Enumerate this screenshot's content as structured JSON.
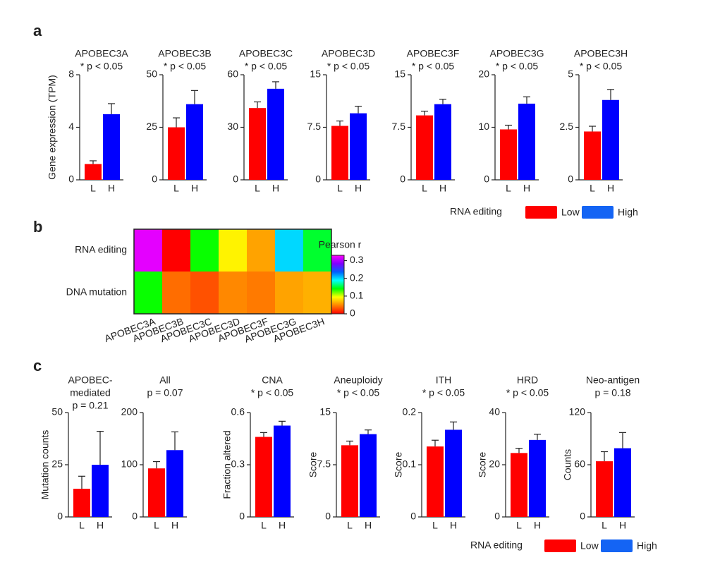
{
  "panels": [
    "a",
    "b",
    "c"
  ],
  "legends": [
    {
      "title": "RNA editing",
      "entries": [
        {
          "name": "Low",
          "color": "#ff0000"
        },
        {
          "name": "High",
          "color": "#1464f4"
        }
      ]
    },
    {
      "title": "RNA editing",
      "entries": [
        {
          "name": "Low",
          "color": "#ff0000"
        },
        {
          "name": "High",
          "color": "#1464f4"
        }
      ]
    }
  ],
  "chart_data": [
    {
      "type": "bar",
      "title": [
        "APOBEC3A",
        "* p < 0.05"
      ],
      "ylabel": "Gene expression (TPM)",
      "categories": [
        "L",
        "H"
      ],
      "values": [
        1.2,
        5.0
      ],
      "errors": [
        0.25,
        0.8
      ],
      "colors": [
        "#ff0000",
        "#0000ff"
      ],
      "ylim": [
        0,
        8
      ],
      "yticks": [
        0,
        4,
        8
      ]
    },
    {
      "type": "bar",
      "title": [
        "APOBEC3B",
        "* p < 0.05"
      ],
      "categories": [
        "L",
        "H"
      ],
      "values": [
        25,
        36
      ],
      "errors": [
        4.5,
        6.5
      ],
      "colors": [
        "#ff0000",
        "#0000ff"
      ],
      "ylim": [
        0,
        50
      ],
      "yticks": [
        0,
        25,
        50
      ]
    },
    {
      "type": "bar",
      "title": [
        "APOBEC3C",
        "* p < 0.05"
      ],
      "categories": [
        "L",
        "H"
      ],
      "values": [
        41,
        52
      ],
      "errors": [
        3.5,
        4
      ],
      "colors": [
        "#ff0000",
        "#0000ff"
      ],
      "ylim": [
        0,
        60
      ],
      "yticks": [
        0,
        30,
        60
      ]
    },
    {
      "type": "bar",
      "title": [
        "APOBEC3D",
        "* p < 0.05"
      ],
      "categories": [
        "L",
        "H"
      ],
      "values": [
        7.7,
        9.5
      ],
      "errors": [
        0.7,
        1.0
      ],
      "colors": [
        "#ff0000",
        "#0000ff"
      ],
      "ylim": [
        0,
        15
      ],
      "yticks": [
        0,
        7.5,
        15
      ]
    },
    {
      "type": "bar",
      "title": [
        "APOBEC3F",
        "* p < 0.05"
      ],
      "categories": [
        "L",
        "H"
      ],
      "values": [
        9.2,
        10.8
      ],
      "errors": [
        0.6,
        0.7
      ],
      "colors": [
        "#ff0000",
        "#0000ff"
      ],
      "ylim": [
        0,
        15
      ],
      "yticks": [
        0,
        7.5,
        15
      ]
    },
    {
      "type": "bar",
      "title": [
        "APOBEC3G",
        "* p < 0.05"
      ],
      "categories": [
        "L",
        "H"
      ],
      "values": [
        9.6,
        14.5
      ],
      "errors": [
        0.8,
        1.3
      ],
      "colors": [
        "#ff0000",
        "#0000ff"
      ],
      "ylim": [
        0,
        20
      ],
      "yticks": [
        0,
        10,
        20
      ]
    },
    {
      "type": "bar",
      "title": [
        "APOBEC3H",
        "* p < 0.05"
      ],
      "categories": [
        "L",
        "H"
      ],
      "values": [
        2.3,
        3.8
      ],
      "errors": [
        0.25,
        0.5
      ],
      "colors": [
        "#ff0000",
        "#0000ff"
      ],
      "ylim": [
        0,
        5
      ],
      "yticks": [
        0,
        2.5,
        5
      ]
    },
    {
      "type": "heatmap",
      "x": [
        "APOBEC3A",
        "APOBEC3B",
        "APOBEC3C",
        "APOBEC3D",
        "APOBEC3F",
        "APOBEC3G",
        "APOBEC3H"
      ],
      "y": [
        "RNA editing",
        "DNA mutation"
      ],
      "values": [
        [
          0.32,
          0.0,
          0.14,
          0.09,
          0.06,
          0.2,
          0.15
        ],
        [
          0.14,
          0.04,
          0.03,
          0.05,
          0.045,
          0.06,
          0.065
        ]
      ],
      "colorbar_title": "Pearson r",
      "zlim": [
        0,
        0.33
      ],
      "zticks": [
        0,
        0.1,
        0.2,
        0.3
      ],
      "colormap": [
        "#ff0000",
        "#ff8000",
        "#ffff00",
        "#00ff00",
        "#00ffff",
        "#0060ff",
        "#8000ff",
        "#ff00ff"
      ]
    },
    {
      "type": "bar",
      "title": [
        "APOBEC-",
        "mediated",
        "p = 0.21"
      ],
      "ylabel": "Mutation counts",
      "categories": [
        "L",
        "H"
      ],
      "values": [
        13.5,
        25
      ],
      "errors": [
        6,
        16
      ],
      "colors": [
        "#ff0000",
        "#0000ff"
      ],
      "ylim": [
        0,
        50
      ],
      "yticks": [
        0,
        25,
        50
      ]
    },
    {
      "type": "bar",
      "title": [
        "All",
        "p = 0.07"
      ],
      "categories": [
        "L",
        "H"
      ],
      "values": [
        93,
        128
      ],
      "errors": [
        13,
        35
      ],
      "colors": [
        "#ff0000",
        "#0000ff"
      ],
      "ylim": [
        0,
        200
      ],
      "yticks": [
        0,
        100,
        200
      ]
    },
    {
      "type": "bar",
      "title": [
        "CNA",
        "* p < 0.05"
      ],
      "ylabel": "Fraction altered",
      "categories": [
        "L",
        "H"
      ],
      "values": [
        0.46,
        0.525
      ],
      "errors": [
        0.025,
        0.025
      ],
      "colors": [
        "#ff0000",
        "#0000ff"
      ],
      "ylim": [
        0,
        0.6
      ],
      "yticks": [
        0,
        0.3,
        0.6
      ]
    },
    {
      "type": "bar",
      "title": [
        "Aneuploidy",
        "* p < 0.05"
      ],
      "ylabel": "Score",
      "categories": [
        "L",
        "H"
      ],
      "values": [
        10.3,
        11.9
      ],
      "errors": [
        0.6,
        0.6
      ],
      "colors": [
        "#ff0000",
        "#0000ff"
      ],
      "ylim": [
        0,
        15
      ],
      "yticks": [
        0,
        7.5,
        15
      ]
    },
    {
      "type": "bar",
      "title": [
        "ITH",
        "* p < 0.05"
      ],
      "ylabel": "Score",
      "categories": [
        "L",
        "H"
      ],
      "values": [
        0.135,
        0.167
      ],
      "errors": [
        0.012,
        0.015
      ],
      "colors": [
        "#ff0000",
        "#0000ff"
      ],
      "ylim": [
        0,
        0.2
      ],
      "yticks": [
        0,
        0.1,
        0.2
      ]
    },
    {
      "type": "bar",
      "title": [
        "HRD",
        "* p < 0.05"
      ],
      "ylabel": "Score",
      "categories": [
        "L",
        "H"
      ],
      "values": [
        24.5,
        29.5
      ],
      "errors": [
        1.8,
        2.2
      ],
      "colors": [
        "#ff0000",
        "#0000ff"
      ],
      "ylim": [
        0,
        40
      ],
      "yticks": [
        0,
        20,
        40
      ]
    },
    {
      "type": "bar",
      "title": [
        "Neo-antigen",
        "p = 0.18"
      ],
      "ylabel": "Counts",
      "categories": [
        "L",
        "H"
      ],
      "values": [
        64,
        79
      ],
      "errors": [
        11,
        18
      ],
      "colors": [
        "#ff0000",
        "#0000ff"
      ],
      "ylim": [
        0,
        120
      ],
      "yticks": [
        0,
        60,
        120
      ]
    }
  ]
}
